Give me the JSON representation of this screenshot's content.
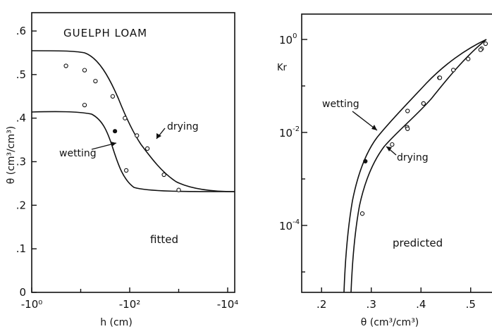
{
  "chart_data": [
    {
      "type": "scatter",
      "title": "GUELPH LOAM",
      "annotation": "fitted",
      "xlabel": "h (cm)",
      "ylabel": "θ (cm³/cm³)",
      "x_scale": "log (magnitude of negative pressure head)",
      "x_ticks": [
        "-10⁰",
        "-10²",
        "-10⁴"
      ],
      "y_ticks": [
        "0",
        ".1",
        ".2",
        ".3",
        ".4",
        ".5",
        ".6"
      ],
      "ylim": [
        0,
        0.6
      ],
      "series": [
        {
          "name": "drying",
          "x": [
            -5,
            -12,
            -20,
            -45,
            -80,
            -140,
            -230,
            -500,
            -1000
          ],
          "y": [
            0.52,
            0.51,
            0.485,
            0.45,
            0.4,
            0.36,
            0.33,
            0.27,
            0.235
          ]
        },
        {
          "name": "wetting",
          "x": [
            -12,
            -50,
            -85
          ],
          "y": [
            0.43,
            0.37,
            0.28
          ]
        }
      ]
    },
    {
      "type": "scatter",
      "annotation": "predicted",
      "xlabel": "θ (cm³/cm³)",
      "ylabel": "Kr",
      "y_scale": "log",
      "x_ticks": [
        ".2",
        ".3",
        ".4",
        ".5"
      ],
      "y_tick_labels": [
        {
          "mantissa": "10",
          "exp": "0"
        },
        {
          "mantissa": "10",
          "exp": "-2"
        },
        {
          "mantissa": "10",
          "exp": "-4"
        }
      ],
      "xlim": [
        0.16,
        0.55
      ],
      "ylim": [
        1e-05,
        1.0
      ],
      "series": [
        {
          "name": "wetting",
          "x": [
            0.282,
            0.372,
            0.405,
            0.437,
            0.465,
            0.495,
            0.522,
            0.53
          ],
          "y": [
            0.00018,
            0.013,
            0.042,
            0.15,
            0.22,
            0.38,
            0.63,
            0.81
          ]
        },
        {
          "name": "drying",
          "x": [
            0.288,
            0.342,
            0.373,
            0.373,
            0.405,
            0.438,
            0.52
          ],
          "y": [
            0.0024,
            0.0055,
            0.029,
            0.012,
            0.042,
            0.15,
            0.6
          ]
        }
      ]
    }
  ]
}
